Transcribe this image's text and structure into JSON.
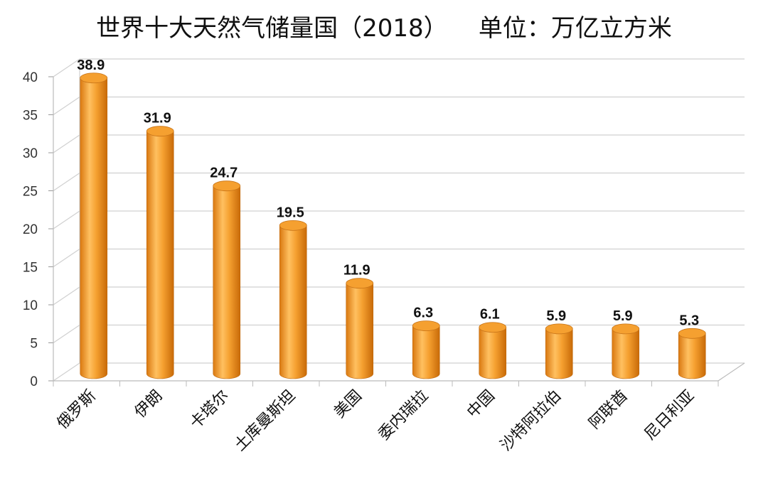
{
  "chart_data": {
    "type": "bar",
    "title": "世界十大天然气储量国（2018）    单位：万亿立方米",
    "categories": [
      "俄罗斯",
      "伊朗",
      "卡塔尔",
      "土库曼斯坦",
      "美国",
      "委内瑞拉",
      "中国",
      "沙特阿拉伯",
      "阿联酋",
      "尼日利亚"
    ],
    "values": [
      38.9,
      31.9,
      24.7,
      19.5,
      11.9,
      6.3,
      6.1,
      5.9,
      5.9,
      5.3
    ],
    "value_labels": [
      "38.9",
      "31.9",
      "24.7",
      "19.5",
      "11.9",
      "6.3",
      "6.1",
      "5.9",
      "5.9",
      "5.3"
    ],
    "yticks": [
      "0",
      "5",
      "10",
      "15",
      "20",
      "25",
      "30",
      "35",
      "40"
    ],
    "ylim": [
      0,
      40
    ],
    "grid": true,
    "legend": "none",
    "colors": {
      "bar": "#F5A030",
      "bar_light": "#FFD59A",
      "bar_dark": "#D97810",
      "grid": "#D0D0D0"
    }
  }
}
